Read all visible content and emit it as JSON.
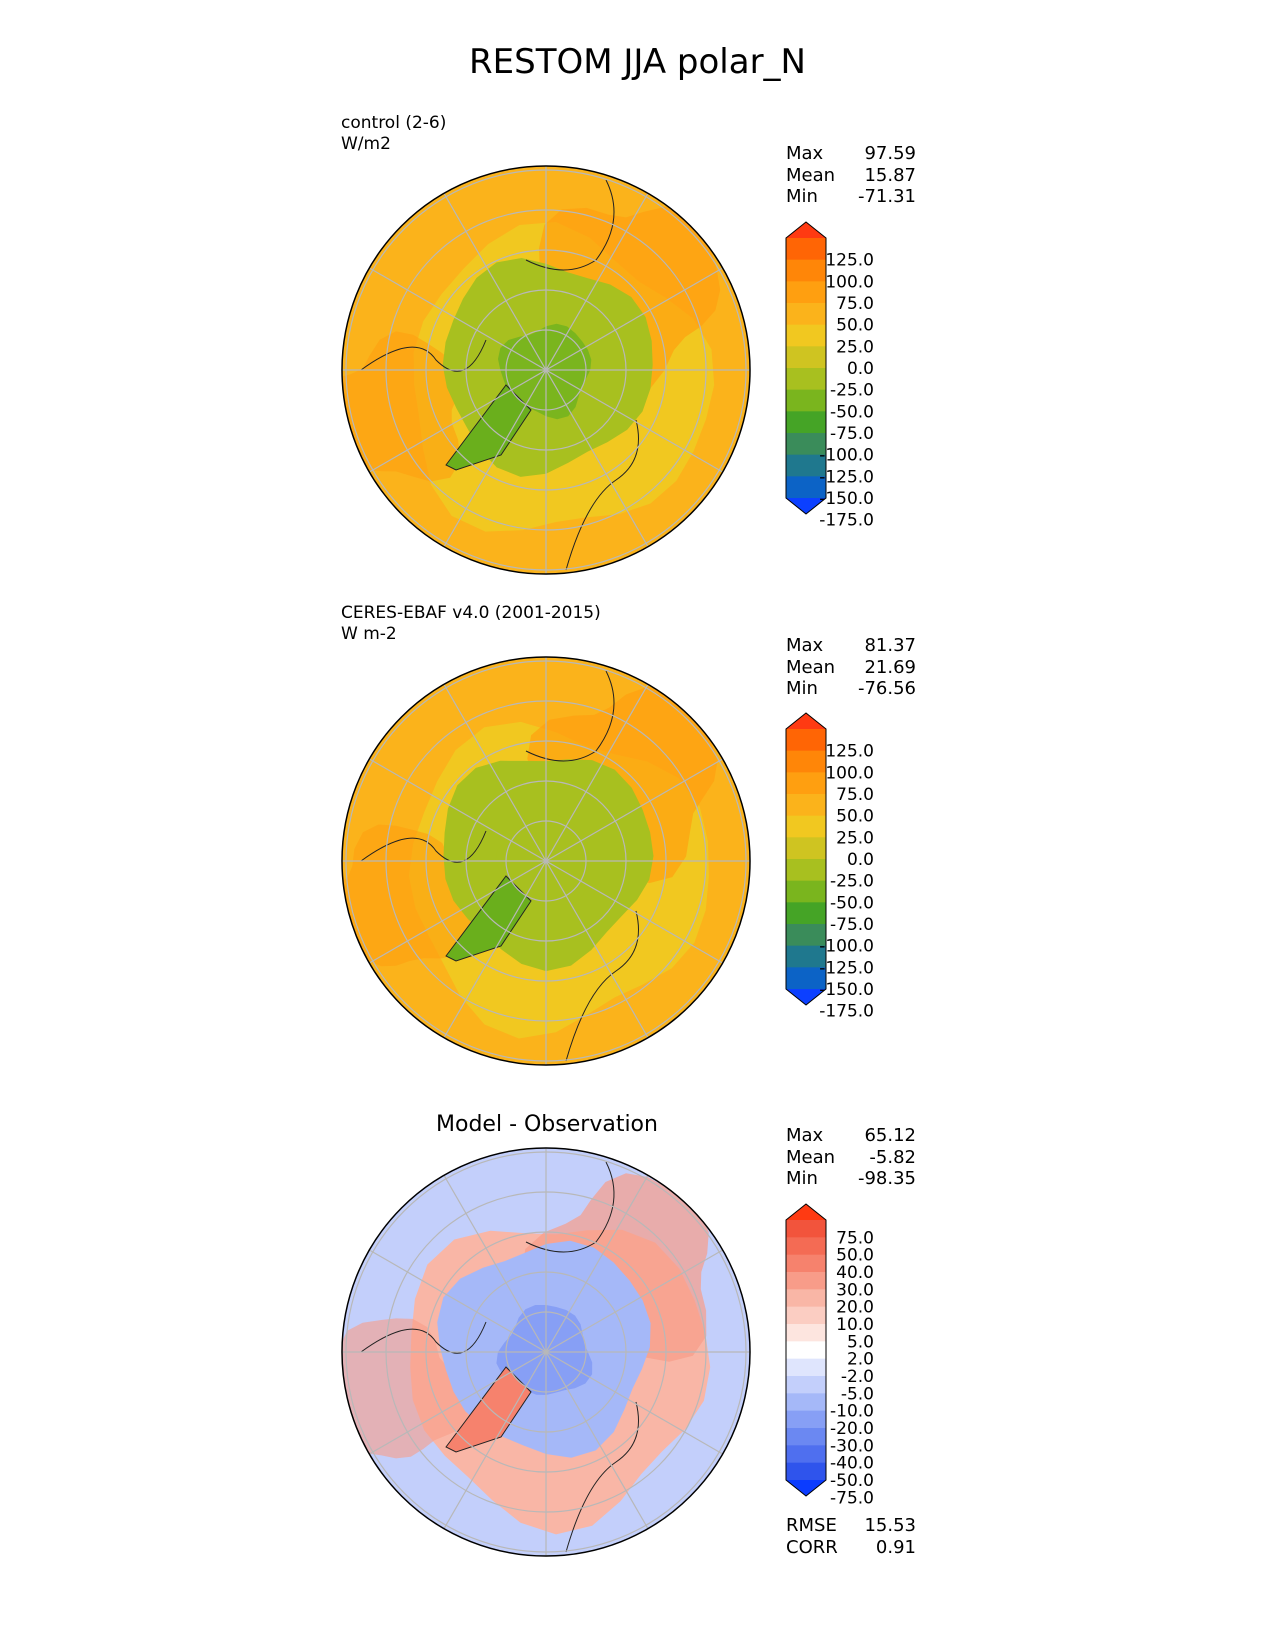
{
  "title": "RESTOM JJA polar_N",
  "panels": [
    {
      "label_line1": "control (2-6)",
      "label_line2": "W/m2",
      "stats": [
        {
          "name": "Max",
          "value": "97.59"
        },
        {
          "name": "Mean",
          "value": "15.87"
        },
        {
          "name": "Min",
          "value": "-71.31"
        }
      ],
      "colorbar": {
        "ticks": [
          "125.0",
          "100.0",
          "75.0",
          "50.0",
          "25.0",
          "0.0",
          "-25.0",
          "-50.0",
          "-75.0",
          "-100.0",
          "-125.0",
          "-150.0",
          "-175.0"
        ],
        "colors": [
          "#ff3a12",
          "#ff6505",
          "#ff8608",
          "#ff9f10",
          "#fbb31b",
          "#f1c820",
          "#cfc421",
          "#a8c01f",
          "#7ab51e",
          "#45a426",
          "#3a8c5a",
          "#1f788e",
          "#0c63c6",
          "#0c40ff"
        ]
      },
      "map_colors": {
        "outer": "#fbb31b",
        "mid": "#f1c820",
        "arctic": "#a8c01f",
        "core": "#7ab51e",
        "greenland": "#6aaf1c",
        "warm": "#ff9f10"
      }
    },
    {
      "label_line1": "CERES-EBAF v4.0 (2001-2015)",
      "label_line2": "W m-2",
      "stats": [
        {
          "name": "Max",
          "value": "81.37"
        },
        {
          "name": "Mean",
          "value": "21.69"
        },
        {
          "name": "Min",
          "value": "-76.56"
        }
      ],
      "colorbar": {
        "ticks": [
          "125.0",
          "100.0",
          "75.0",
          "50.0",
          "25.0",
          "0.0",
          "-25.0",
          "-50.0",
          "-75.0",
          "-100.0",
          "-125.0",
          "-150.0",
          "-175.0"
        ],
        "colors": [
          "#ff3a12",
          "#ff6505",
          "#ff8608",
          "#ff9f10",
          "#fbb31b",
          "#f1c820",
          "#cfc421",
          "#a8c01f",
          "#7ab51e",
          "#45a426",
          "#3a8c5a",
          "#1f788e",
          "#0c63c6",
          "#0c40ff"
        ]
      },
      "map_colors": {
        "outer": "#fbb31b",
        "mid": "#f1c820",
        "arctic": "#a8c01f",
        "core": "#a8c01f",
        "greenland": "#6aaf1c",
        "warm": "#ff9f10"
      }
    },
    {
      "center_title": "Model - Observation",
      "stats": [
        {
          "name": "Max",
          "value": "65.12"
        },
        {
          "name": "Mean",
          "value": "-5.82"
        },
        {
          "name": "Min",
          "value": "-98.35"
        }
      ],
      "extra_stats": [
        {
          "name": "RMSE",
          "value": "15.53"
        },
        {
          "name": "CORR",
          "value": "0.91"
        }
      ],
      "colorbar": {
        "ticks": [
          "75.0",
          "50.0",
          "40.0",
          "30.0",
          "20.0",
          "10.0",
          "5.0",
          "2.0",
          "-2.0",
          "-5.0",
          "-10.0",
          "-20.0",
          "-30.0",
          "-40.0",
          "-50.0",
          "-75.0"
        ],
        "colors": [
          "#ff3a12",
          "#f2543c",
          "#f46b54",
          "#f6826d",
          "#f89c89",
          "#f9b6a6",
          "#fbcdc2",
          "#fde5df",
          "#ffffff",
          "#dfe5fd",
          "#c3cffb",
          "#a5b8f8",
          "#879ff5",
          "#6b88f2",
          "#4f6fef",
          "#2f54ec",
          "#0b3cff"
        ]
      },
      "map_colors": {
        "outer": "#c3cffb",
        "mid": "#f9b6a6",
        "arctic": "#a5b8f8",
        "core": "#879ff5",
        "greenland": "#f6826d",
        "warm": "#f89c89"
      }
    }
  ]
}
